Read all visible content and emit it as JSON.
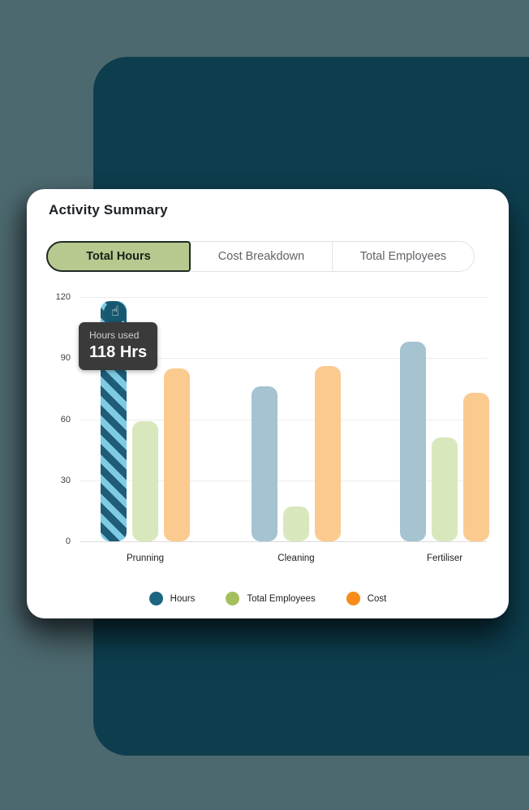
{
  "card": {
    "title": "Activity Summary",
    "tabs": [
      {
        "label": "Total Hours",
        "active": true
      },
      {
        "label": "Cost Breakdown",
        "active": false
      },
      {
        "label": "Total Employees",
        "active": false
      }
    ]
  },
  "tooltip": {
    "label": "Hours used",
    "value": "118 Hrs"
  },
  "colors": {
    "page_background": "#4d6970",
    "dark_panel": "#0e3e4e",
    "card_background": "#ffffff",
    "active_tab_fill": "#b7c98f",
    "active_tab_border": "#1e2b23",
    "stripe_light": "#7fcbe3",
    "stripe_dark": "#1e5c78",
    "tooltip_background": "#3a3a3a",
    "cursor_circle": "#15586f"
  },
  "chart_data": {
    "type": "bar",
    "title": "Activity Summary",
    "categories": [
      "Prunning",
      "Cleaning",
      "Fertiliser"
    ],
    "series": [
      {
        "name": "Hours",
        "values": [
          118,
          76,
          98
        ],
        "bar_color": "#a5c3d1",
        "legend_color": "#1d6580"
      },
      {
        "name": "Total Employees",
        "values": [
          59,
          17,
          51
        ],
        "bar_color": "#d9e7bd",
        "legend_color": "#a6bf5e"
      },
      {
        "name": "Cost",
        "values": [
          85,
          86,
          73
        ],
        "bar_color": "#fbca8f",
        "legend_color": "#f78c1a"
      }
    ],
    "ylim": [
      0,
      120
    ],
    "yticks": [
      0,
      30,
      60,
      90,
      120
    ],
    "grid": true,
    "legend_position": "bottom",
    "highlight": {
      "category": "Prunning",
      "series": "Hours",
      "tooltip_label": "Hours used",
      "tooltip_value": "118 Hrs"
    }
  }
}
